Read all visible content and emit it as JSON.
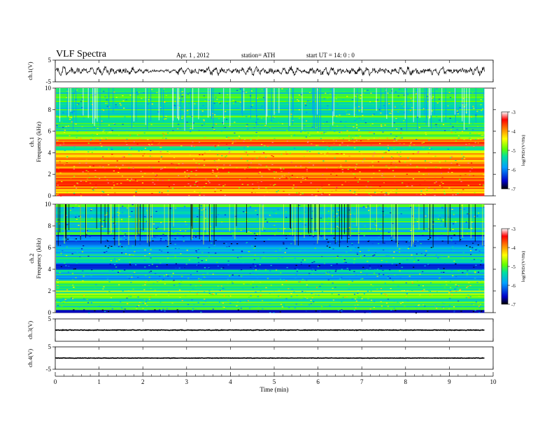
{
  "header": {
    "title": "VLF  Spectra",
    "date": "Apr. 1  , 2012",
    "station": "station= ATH",
    "start": "start  UT  =    14: 0  : 0"
  },
  "x_axis": {
    "label": "Time  (min)",
    "ticks": [
      0,
      1,
      2,
      3,
      4,
      5,
      6,
      7,
      8,
      9,
      10
    ],
    "range": [
      0,
      10
    ],
    "data_end": 9.8
  },
  "panels": {
    "ch1_wave": {
      "label": "ch.1(V)",
      "range": [
        -5,
        5
      ],
      "ticks": [
        "5",
        "-5"
      ]
    },
    "spec1": {
      "label_top": "ch.1",
      "label_bottom": "Frequency  (kHz)",
      "range": [
        0,
        10
      ],
      "ticks": [
        "0",
        "2",
        "4",
        "6",
        "8",
        "10"
      ]
    },
    "spec2": {
      "label_top": "ch.2",
      "label_bottom": "Frequency  (kHz)",
      "range": [
        0,
        10
      ],
      "ticks": [
        "0",
        "2",
        "4",
        "6",
        "8",
        "10"
      ]
    },
    "ch3_wave": {
      "label": "ch.3(V)",
      "range": [
        -5,
        5
      ],
      "ticks": [
        "5"
      ]
    },
    "ch4_wave": {
      "label": "ch.4(V)",
      "range": [
        -5,
        5
      ],
      "ticks": [
        "5",
        "-5"
      ]
    }
  },
  "colorbar": {
    "label": "log(PSD/(V²/Hz)",
    "ticks": [
      "-3",
      "-4",
      "-5",
      "-6",
      "-7"
    ],
    "range": [
      -7,
      -3
    ],
    "colors": [
      "#000000",
      "#0000c8",
      "#00a0ff",
      "#00e0a0",
      "#60ff00",
      "#ffff00",
      "#ff8000",
      "#ff0000",
      "#ffffff"
    ]
  },
  "chart_data": {
    "type": "heatmap",
    "title": "VLF  Spectra",
    "xlabel": "Time  (min)",
    "ylabel": "Frequency  (kHz)",
    "xlim": [
      0,
      10
    ],
    "ylim": [
      0,
      10
    ],
    "zlim": [
      -7,
      -3
    ],
    "series": [
      {
        "name": "ch.1",
        "dominant_bands_kHz": [
          {
            "range": [
              0,
              0.2
            ],
            "level": -3.5
          },
          {
            "range": [
              0.2,
              0.6
            ],
            "level": -4.5
          },
          {
            "range": [
              0.6,
              3.2
            ],
            "level": -3.8
          },
          {
            "range": [
              3.2,
              4.2
            ],
            "level": -4.2
          },
          {
            "range": [
              4.2,
              4.6
            ],
            "level": -5.2
          },
          {
            "range": [
              4.6,
              5.2
            ],
            "level": -3.7
          },
          {
            "range": [
              5.2,
              6.0
            ],
            "level": -5.0
          },
          {
            "range": [
              6.0,
              10.0
            ],
            "level": -5.2
          }
        ]
      },
      {
        "name": "ch.2",
        "dominant_bands_kHz": [
          {
            "range": [
              0,
              0.3
            ],
            "level": -6.5
          },
          {
            "range": [
              0.3,
              1.4
            ],
            "level": -5.2
          },
          {
            "range": [
              1.4,
              3.0
            ],
            "level": -5.0
          },
          {
            "range": [
              3.0,
              4.0
            ],
            "level": -5.6
          },
          {
            "range": [
              4.0,
              4.6
            ],
            "level": -6.2
          },
          {
            "range": [
              4.6,
              6.0
            ],
            "level": -5.5
          },
          {
            "range": [
              6.0,
              7.2
            ],
            "level": -6.3
          },
          {
            "range": [
              7.2,
              10.0
            ],
            "level": -5.4
          }
        ]
      }
    ],
    "waveforms": [
      {
        "name": "ch.1(V)",
        "ylim": [
          -5,
          5
        ],
        "approx_amplitude": 2.5
      },
      {
        "name": "ch.3(V)",
        "ylim": [
          -5,
          5
        ],
        "approx_amplitude": 0.3
      },
      {
        "name": "ch.4(V)",
        "ylim": [
          -5,
          5
        ],
        "approx_amplitude": 0.3
      }
    ]
  }
}
